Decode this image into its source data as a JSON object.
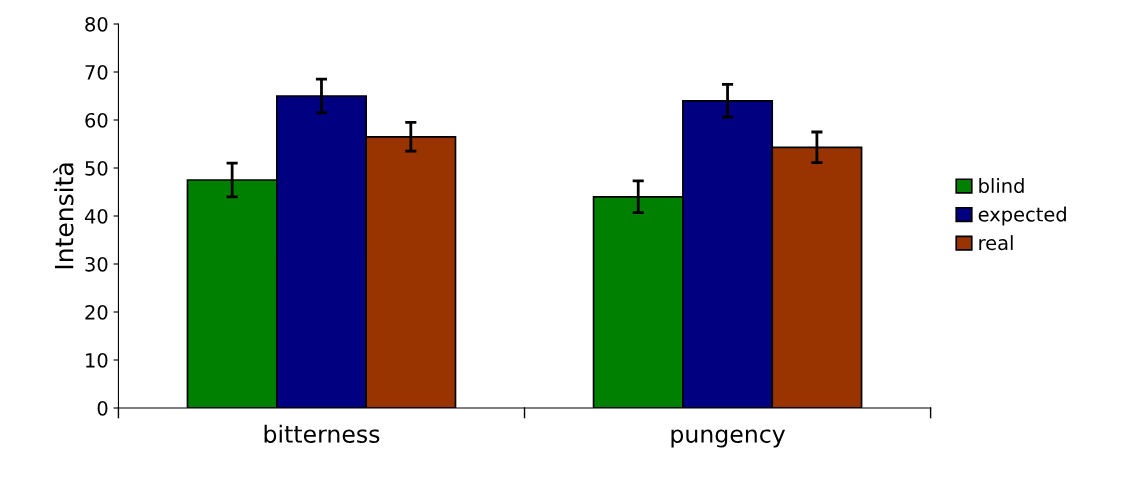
{
  "chart_data": {
    "type": "bar",
    "ylabel": "Intensità",
    "categories": [
      "bitterness",
      "pungency"
    ],
    "series": [
      {
        "name": "blind",
        "color": "#008000",
        "values": [
          47.5,
          44
        ],
        "errors": [
          3.5,
          3.3
        ]
      },
      {
        "name": "expected",
        "color": "#000080",
        "values": [
          65,
          64
        ],
        "errors": [
          3.5,
          3.4
        ]
      },
      {
        "name": "real",
        "color": "#993300",
        "values": [
          56.5,
          54.3
        ],
        "errors": [
          3,
          3.2
        ]
      }
    ],
    "ylim": [
      0,
      80
    ],
    "yticks": [
      0,
      10,
      20,
      30,
      40,
      50,
      60,
      70,
      80
    ],
    "grid": false,
    "legend": "right"
  }
}
